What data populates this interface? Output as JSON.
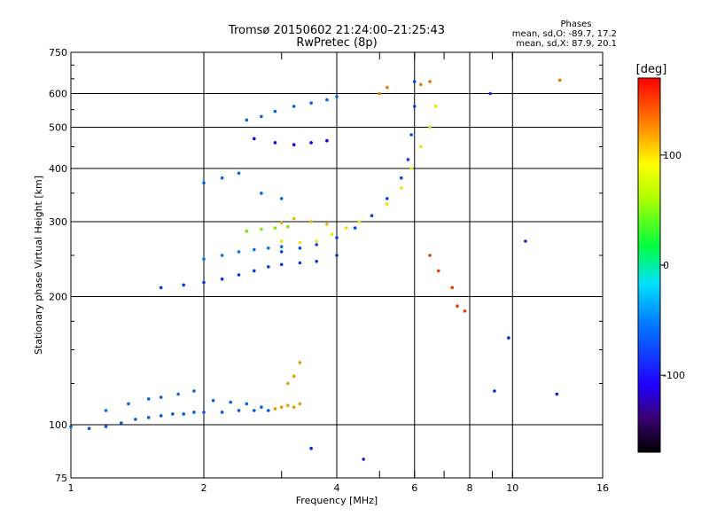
{
  "chart_data": {
    "type": "scatter",
    "title": "Tromsø 20150602 21:24:00–21:25:43",
    "subtitle": "RwPretec (8p)",
    "stats": {
      "heading": "Phases",
      "line1": "mean, sd,O: -89.7, 17.2",
      "line2": "mean, sd,X:  87.9, 20.1"
    },
    "xlabel": "Frequency [MHz]",
    "ylabel": "Stationary phase Virtual Height [km]",
    "x_scale": "log",
    "y_scale": "log",
    "xlim": [
      1,
      16
    ],
    "ylim": [
      75,
      750
    ],
    "x_ticks": [
      1,
      2,
      4,
      6,
      8,
      10,
      16
    ],
    "x_tick_labels": [
      "1",
      "2",
      "4",
      "6",
      "8",
      "10",
      "16"
    ],
    "x_minor_ticks": [
      3,
      5,
      7,
      9
    ],
    "y_ticks": [
      75,
      100,
      200,
      300,
      400,
      500,
      600,
      750
    ],
    "y_tick_labels": [
      "75",
      "100",
      "200",
      "300",
      "400",
      "500",
      "600",
      "750"
    ],
    "y_grid": [
      100,
      200,
      300,
      400,
      500,
      600
    ],
    "x_grid": [
      2,
      4,
      6,
      8,
      10
    ],
    "grid": true,
    "colorbar": {
      "label": "[deg]",
      "min": -170,
      "max": 170,
      "tick_values": [
        100,
        0,
        -100
      ],
      "tick_labels": [
        "100",
        "0",
        "-100"
      ],
      "colormap": "rainbow"
    },
    "series": [
      {
        "points": [
          [
            1.0,
            99
          ],
          [
            1.1,
            98
          ],
          [
            1.2,
            99
          ],
          [
            1.3,
            101
          ],
          [
            1.4,
            103
          ],
          [
            1.5,
            104
          ],
          [
            1.6,
            105
          ],
          [
            1.7,
            106
          ],
          [
            1.8,
            106
          ],
          [
            1.9,
            107
          ],
          [
            2.0,
            107
          ],
          [
            2.2,
            107
          ],
          [
            2.4,
            108
          ],
          [
            2.6,
            108
          ],
          [
            2.8,
            108
          ]
        ],
        "phase": -105
      },
      {
        "points": [
          [
            1.2,
            108
          ],
          [
            1.35,
            112
          ],
          [
            1.5,
            115
          ],
          [
            1.6,
            116
          ],
          [
            1.75,
            118
          ],
          [
            1.9,
            120
          ],
          [
            2.1,
            114
          ],
          [
            2.3,
            113
          ],
          [
            2.5,
            112
          ],
          [
            2.7,
            110
          ]
        ],
        "phase": -100
      },
      {
        "points": [
          [
            2.9,
            109
          ],
          [
            3.0,
            110
          ],
          [
            3.1,
            111
          ],
          [
            3.2,
            110
          ],
          [
            3.3,
            112
          ],
          [
            3.1,
            125
          ],
          [
            3.2,
            130
          ],
          [
            3.3,
            140
          ]
        ],
        "phase": 120
      },
      {
        "points": [
          [
            1.6,
            210
          ],
          [
            1.8,
            213
          ],
          [
            2.0,
            216
          ],
          [
            2.2,
            220
          ],
          [
            2.4,
            225
          ],
          [
            2.6,
            230
          ],
          [
            2.8,
            235
          ],
          [
            3.0,
            238
          ],
          [
            3.3,
            240
          ],
          [
            3.6,
            242
          ],
          [
            4.0,
            250
          ]
        ],
        "phase": -115
      },
      {
        "points": [
          [
            2.0,
            245
          ],
          [
            2.2,
            250
          ],
          [
            2.4,
            255
          ],
          [
            2.6,
            258
          ],
          [
            2.8,
            260
          ],
          [
            3.0,
            262
          ]
        ],
        "phase": -95
      },
      {
        "points": [
          [
            3.0,
            270
          ],
          [
            3.3,
            268
          ],
          [
            3.6,
            270
          ],
          [
            3.9,
            280
          ],
          [
            4.2,
            290
          ],
          [
            4.5,
            300
          ],
          [
            4.8,
            310
          ],
          [
            5.2,
            330
          ],
          [
            5.6,
            360
          ],
          [
            5.9,
            400
          ],
          [
            6.2,
            450
          ],
          [
            6.5,
            500
          ],
          [
            6.7,
            560
          ]
        ],
        "phase": 95
      },
      {
        "points": [
          [
            3.0,
            255
          ],
          [
            3.3,
            260
          ],
          [
            3.6,
            265
          ],
          [
            4.0,
            275
          ],
          [
            4.4,
            290
          ],
          [
            4.8,
            310
          ],
          [
            5.2,
            340
          ],
          [
            5.6,
            380
          ],
          [
            5.8,
            420
          ],
          [
            5.9,
            480
          ],
          [
            6.0,
            560
          ],
          [
            6.0,
            640
          ]
        ],
        "phase": -110
      },
      {
        "points": [
          [
            3.0,
            298
          ],
          [
            3.2,
            305
          ],
          [
            3.5,
            300
          ],
          [
            3.8,
            296
          ]
        ],
        "phase": 110
      },
      {
        "points": [
          [
            2.5,
            285
          ],
          [
            2.7,
            288
          ],
          [
            2.9,
            290
          ],
          [
            3.1,
            292
          ]
        ],
        "phase": 60
      },
      {
        "points": [
          [
            2.5,
            520
          ],
          [
            2.7,
            530
          ],
          [
            2.9,
            545
          ],
          [
            3.2,
            560
          ],
          [
            3.5,
            570
          ],
          [
            3.8,
            580
          ],
          [
            4.0,
            590
          ]
        ],
        "phase": -100
      },
      {
        "points": [
          [
            2.6,
            470
          ],
          [
            2.9,
            460
          ],
          [
            3.2,
            455
          ],
          [
            3.5,
            460
          ],
          [
            3.8,
            465
          ]
        ],
        "phase": -135
      },
      {
        "points": [
          [
            2.0,
            370
          ],
          [
            2.2,
            380
          ],
          [
            2.4,
            390
          ],
          [
            2.7,
            350
          ],
          [
            3.0,
            340
          ]
        ],
        "phase": -100
      },
      {
        "points": [
          [
            6.5,
            250
          ],
          [
            6.8,
            230
          ],
          [
            7.3,
            210
          ],
          [
            7.5,
            190
          ],
          [
            7.8,
            185
          ]
        ],
        "phase": 150
      },
      {
        "points": [
          [
            5.0,
            600
          ],
          [
            5.2,
            620
          ],
          [
            6.2,
            630
          ],
          [
            6.5,
            640
          ],
          [
            12.8,
            645
          ]
        ],
        "phase": 130
      },
      {
        "points": [
          [
            9.8,
            160
          ],
          [
            10.7,
            270
          ],
          [
            12.6,
            118
          ],
          [
            9.1,
            120
          ],
          [
            8.9,
            600
          ],
          [
            4.6,
            83
          ],
          [
            3.5,
            88
          ]
        ],
        "phase": -120
      }
    ]
  }
}
